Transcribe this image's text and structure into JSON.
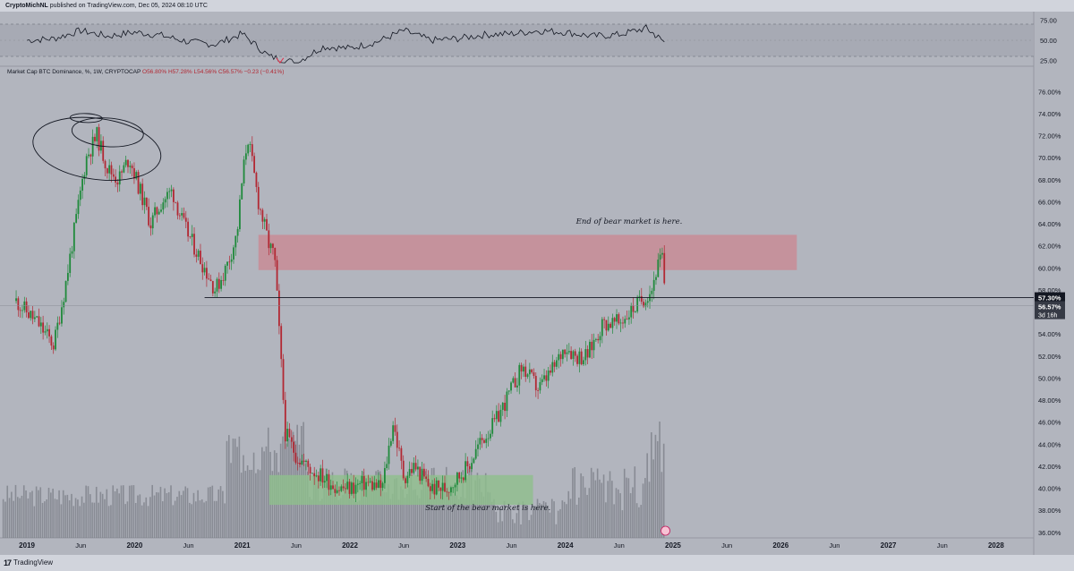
{
  "header": {
    "author": "CryptoMichNL",
    "published_text": " published on TradingView.com, Dec 05, 2024 08:10 UTC"
  },
  "footer": {
    "brand": "TradingView",
    "logo_mark": "17"
  },
  "legend": {
    "symbol": "Market Cap BTC Dominance, %, 1W, CRYPTOCAP",
    "open": "O56.80%",
    "high": "H57.28%",
    "low": "L54.56%",
    "close": "C56.57%",
    "change": "−0.23 (−0.41%)"
  },
  "scale_button": "%",
  "colors": {
    "background": "#b2b5be",
    "up": "#1f8a3b",
    "down": "#b22833",
    "resistance_zone": "#c98a94",
    "support_zone": "#8fbf8c",
    "volume": "#7a7d86"
  },
  "chart_data": [
    {
      "type": "line",
      "title": "RSI",
      "ylim": [
        20,
        80
      ],
      "yticks": [
        "75.00",
        "50.00",
        "25.00"
      ],
      "band": [
        30,
        70
      ],
      "x": [
        2019.0,
        2019.25,
        2019.5,
        2019.75,
        2020.0,
        2020.25,
        2020.5,
        2020.75,
        2021.0,
        2021.25,
        2021.5,
        2021.75,
        2022.0,
        2022.25,
        2022.5,
        2022.75,
        2023.0,
        2023.25,
        2023.5,
        2023.75,
        2024.0,
        2024.25,
        2024.5,
        2024.75,
        2024.92
      ],
      "values": [
        50,
        52,
        62,
        55,
        60,
        56,
        48,
        45,
        58,
        30,
        22,
        42,
        40,
        48,
        62,
        50,
        52,
        57,
        58,
        62,
        60,
        55,
        57,
        65,
        48
      ]
    },
    {
      "type": "candlestick",
      "title": "Market Cap BTC Dominance, %, 1W, CRYPTOCAP",
      "xlabel": "",
      "ylabel": "",
      "ylim": [
        35.5,
        77
      ],
      "yticks": [
        "76.00%",
        "74.00%",
        "72.00%",
        "70.00%",
        "68.00%",
        "66.00%",
        "64.00%",
        "62.00%",
        "60.00%",
        "58.00%",
        "56.00%",
        "54.00%",
        "52.00%",
        "50.00%",
        "48.00%",
        "46.00%",
        "44.00%",
        "42.00%",
        "40.00%",
        "38.00%",
        "36.00%"
      ],
      "xticks": [
        "2019",
        "Jun",
        "2020",
        "Jun",
        "2021",
        "Jun",
        "2022",
        "Jun",
        "2023",
        "Jun",
        "2024",
        "Jun",
        "2025",
        "Jun",
        "2026",
        "Jun",
        "2027",
        "Jun",
        "2028"
      ],
      "xtick_values": [
        2019.0,
        2019.5,
        2020.0,
        2020.5,
        2021.0,
        2021.5,
        2022.0,
        2022.5,
        2023.0,
        2023.5,
        2024.0,
        2024.5,
        2025.0,
        2025.5,
        2026.0,
        2026.5,
        2027.0,
        2027.5,
        2028.0
      ],
      "price_path": {
        "x": [
          2018.9,
          2019.1,
          2019.25,
          2019.35,
          2019.45,
          2019.55,
          2019.65,
          2019.75,
          2019.85,
          2019.95,
          2020.05,
          2020.15,
          2020.25,
          2020.35,
          2020.45,
          2020.55,
          2020.65,
          2020.75,
          2020.85,
          2020.95,
          2021.0,
          2021.05,
          2021.1,
          2021.15,
          2021.25,
          2021.3,
          2021.4,
          2021.5,
          2021.6,
          2021.75,
          2021.9,
          2022.0,
          2022.15,
          2022.3,
          2022.4,
          2022.5,
          2022.6,
          2022.75,
          2022.9,
          2023.0,
          2023.1,
          2023.2,
          2023.35,
          2023.5,
          2023.6,
          2023.75,
          2023.9,
          2024.0,
          2024.1,
          2024.2,
          2024.35,
          2024.5,
          2024.6,
          2024.7,
          2024.8,
          2024.85,
          2024.9,
          2024.93
        ],
        "y": [
          57,
          55,
          53,
          58,
          64,
          70,
          72,
          69,
          68,
          70,
          67,
          64,
          66,
          67,
          64,
          62,
          60,
          58,
          60,
          63,
          68,
          72,
          69,
          66,
          62,
          61,
          45,
          43,
          42,
          41,
          40,
          40,
          40.5,
          40,
          46,
          41,
          42,
          40,
          40,
          41,
          42,
          44,
          46,
          49,
          51,
          49,
          51,
          53,
          52,
          52,
          55,
          55,
          56,
          57,
          58,
          60,
          61,
          56.57
        ]
      },
      "annotations": [
        {
          "text": "End of bear market is here.",
          "x": 2024.1,
          "y": 64
        },
        {
          "text": "Start of the bear market is here.",
          "x": 2022.7,
          "y": 38
        }
      ],
      "zones": [
        {
          "name": "resistance",
          "x": [
            2021.15,
            2026.15
          ],
          "y": [
            59.8,
            63
          ]
        },
        {
          "name": "support",
          "x": [
            2021.25,
            2023.7
          ],
          "y": [
            38.5,
            41.2
          ]
        }
      ],
      "horizontal_line": {
        "y": 57.3,
        "label": "57.30%"
      },
      "last_price": {
        "y": 56.57,
        "label": "56.57%",
        "countdown": "3d 16h"
      }
    }
  ]
}
